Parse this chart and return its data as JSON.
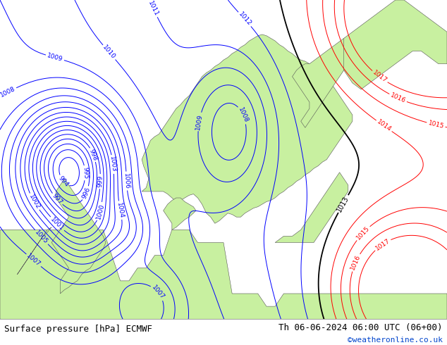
{
  "title_left": "Surface pressure [hPa] ECMWF",
  "title_right": "Th 06-06-2024 06:00 UTC (06+00)",
  "credit": "©weatheronline.co.uk",
  "ocean_color": "#d8d8d8",
  "land_color": "#c8f0a0",
  "land_edge_color": "#555555",
  "figsize": [
    6.34,
    4.9
  ],
  "dpi": 100,
  "bar_color": "#e8e8e8",
  "lon_min": -12,
  "lon_max": 40,
  "lat_min": 48,
  "lat_max": 73,
  "blue_contour_color": "blue",
  "red_contour_color": "red",
  "black_contour_color": "black",
  "contour_lw": 0.7,
  "black_contour_lw": 1.3,
  "label_fontsize": 6.5
}
